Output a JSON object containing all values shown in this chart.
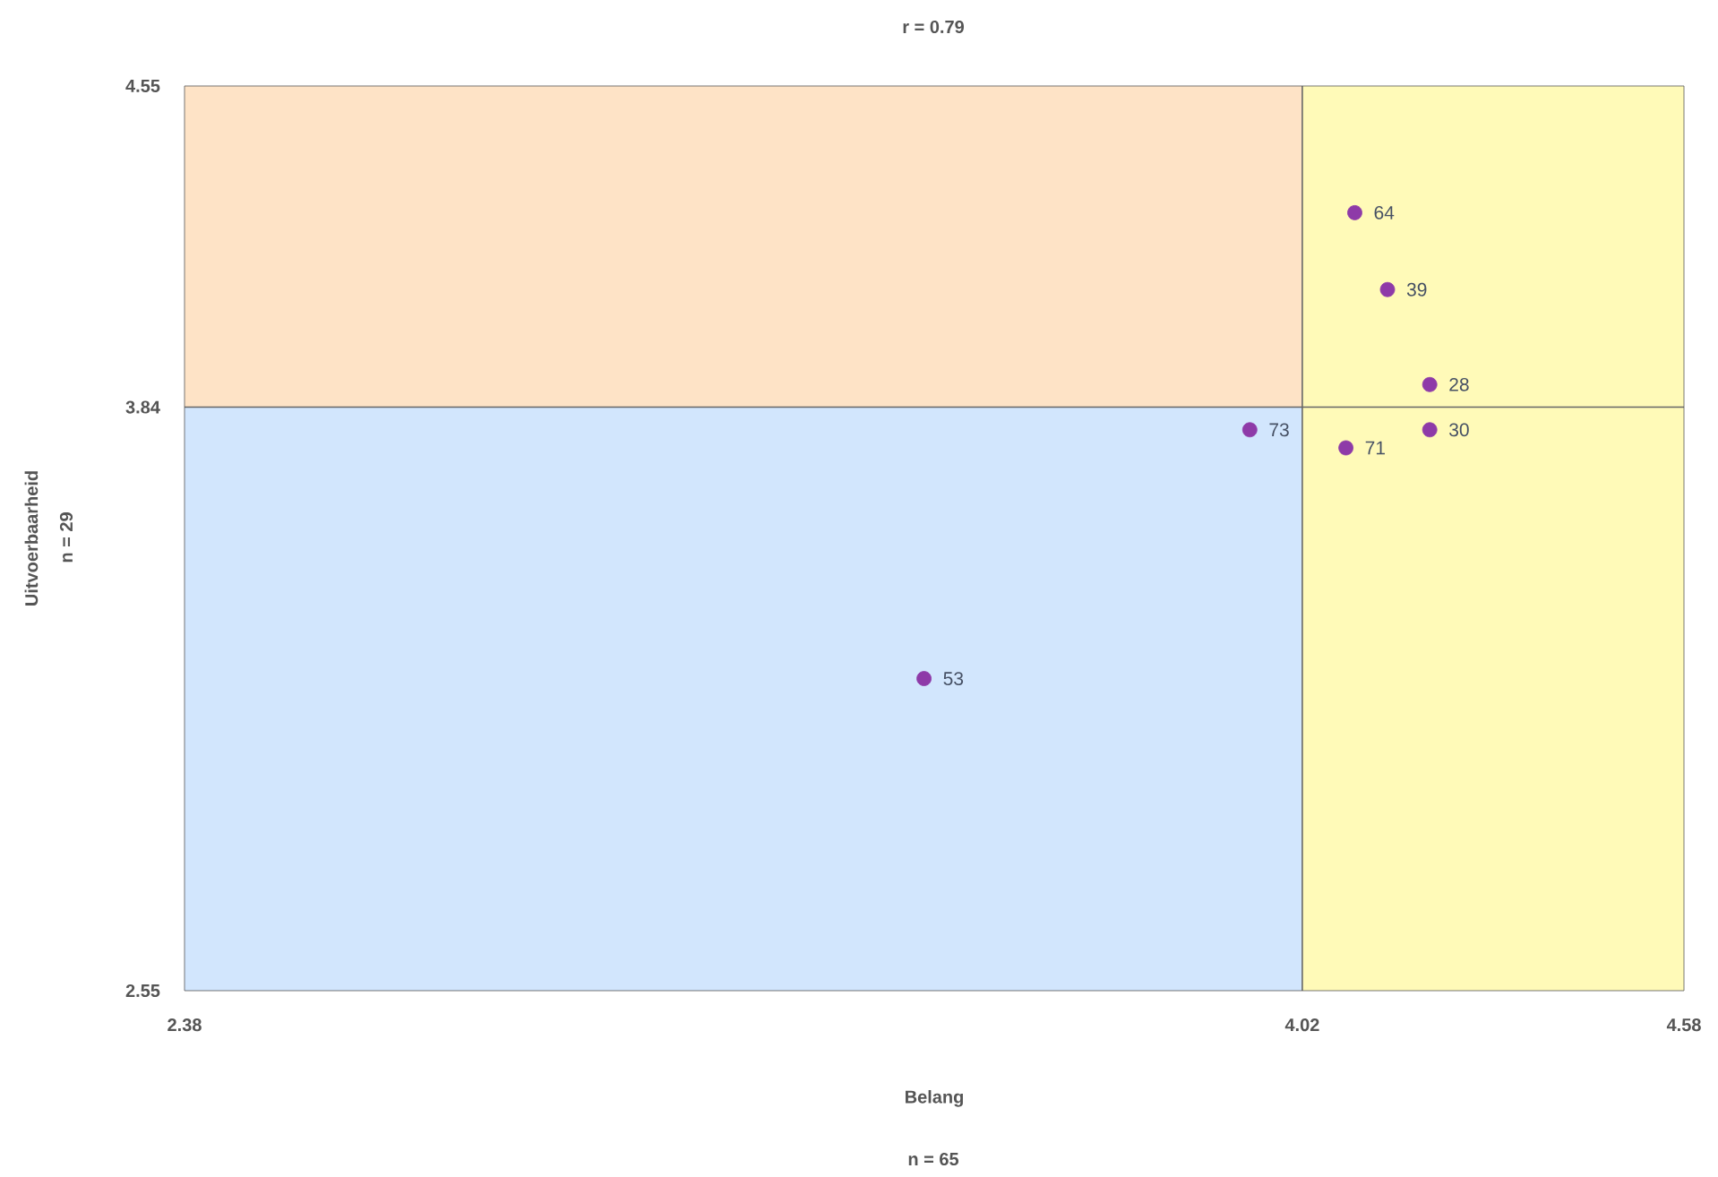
{
  "chart_data": {
    "type": "scatter",
    "title": "r = 0.79",
    "xlabel": "Belang",
    "ylabel": "Uitvoerbaarheid",
    "annotations": [
      "n = 65",
      "n = 29",
      {
        "text": "64",
        "x": 4.097,
        "y": 4.27
      },
      {
        "text": "39",
        "x": 4.145,
        "y": 4.1
      },
      {
        "text": "28",
        "x": 4.207,
        "y": 3.89
      },
      {
        "text": "30",
        "x": 4.207,
        "y": 3.79
      },
      {
        "text": "71",
        "x": 4.084,
        "y": 3.75
      },
      {
        "text": "73",
        "x": 3.943,
        "y": 3.79
      },
      {
        "text": "53",
        "x": 3.465,
        "y": 3.24
      }
    ],
    "xlim": [
      2.38,
      4.58
    ],
    "xticks": [
      2.38,
      4.02,
      4.58
    ],
    "ylim": [
      2.55,
      4.55
    ],
    "yticks": [
      2.55,
      3.84,
      4.55
    ],
    "grid": false,
    "marker": "circle",
    "ref_lines": [
      {
        "axis": "x",
        "value": 4.02,
        "color": "#666666"
      },
      {
        "axis": "y",
        "value": 3.84,
        "color": "#666666"
      }
    ],
    "bands": [
      {
        "axis": "y",
        "from": 2.55,
        "to": 3.84,
        "color": "#d2e6fd"
      },
      {
        "axis": "y",
        "from": 3.84,
        "to": 4.55,
        "color": "#fee3c6"
      },
      {
        "axis": "x",
        "from": 4.02,
        "to": 4.58,
        "color": "#fffab8"
      }
    ],
    "series": [
      {
        "color": "#8e3aa8",
        "x": [
          4.097,
          4.145,
          4.207,
          4.207,
          4.084,
          3.943,
          3.465
        ],
        "values": [
          4.27,
          4.1,
          3.89,
          3.79,
          3.75,
          3.79,
          3.24
        ]
      }
    ]
  }
}
